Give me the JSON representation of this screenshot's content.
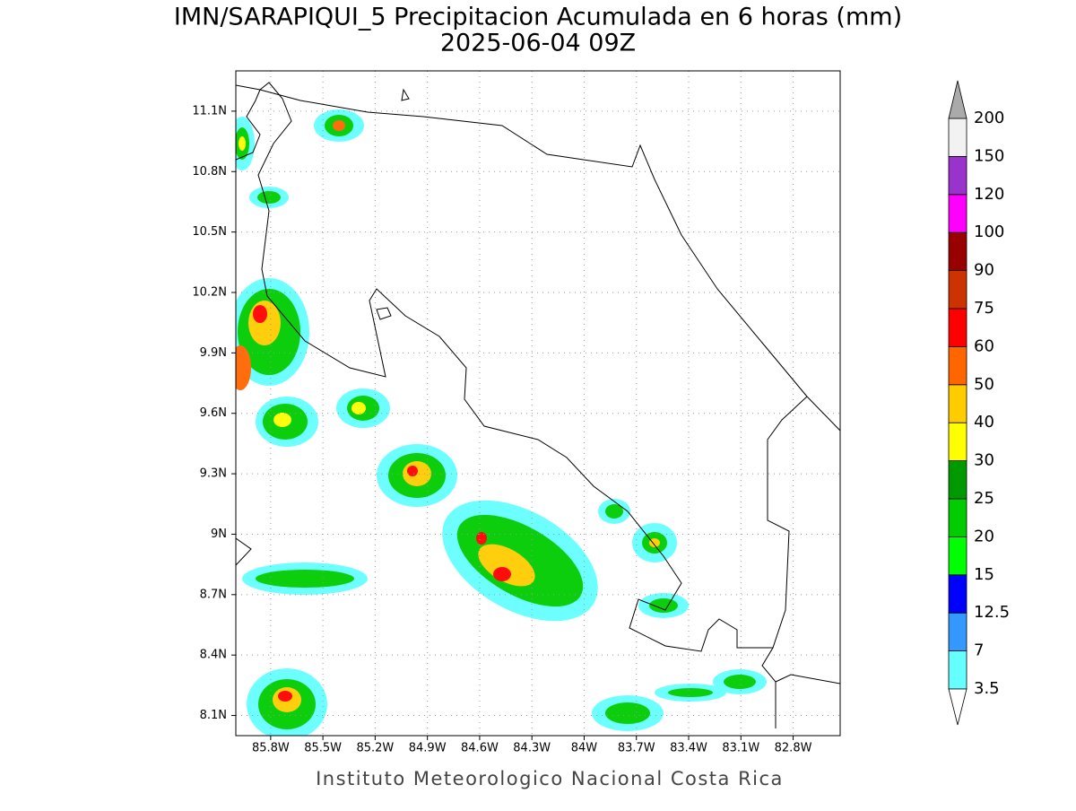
{
  "map": {
    "title": "IMN/SARAPIQUI_5 Precipitacion Acumulada en 6 horas (mm)",
    "subtitle": "2025-06-04 09Z",
    "credit": "Instituto Meteorologico Nacional Costa Rica",
    "lon_range": [
      -86.0,
      -82.53
    ],
    "lat_range": [
      8.0,
      11.3
    ],
    "lon_ticks": [
      {
        "value": -85.8,
        "label": "85.8W"
      },
      {
        "value": -85.5,
        "label": "85.5W"
      },
      {
        "value": -85.2,
        "label": "85.2W"
      },
      {
        "value": -84.9,
        "label": "84.9W"
      },
      {
        "value": -84.6,
        "label": "84.6W"
      },
      {
        "value": -84.3,
        "label": "84.3W"
      },
      {
        "value": -84.0,
        "label": "84W"
      },
      {
        "value": -83.7,
        "label": "83.7W"
      },
      {
        "value": -83.4,
        "label": "83.4W"
      },
      {
        "value": -83.1,
        "label": "83.1W"
      },
      {
        "value": -82.8,
        "label": "82.8W"
      }
    ],
    "lat_ticks": [
      {
        "value": 8.1,
        "label": "8.1N"
      },
      {
        "value": 8.4,
        "label": "8.4N"
      },
      {
        "value": 8.7,
        "label": "8.7N"
      },
      {
        "value": 9.0,
        "label": "9N"
      },
      {
        "value": 9.3,
        "label": "9.3N"
      },
      {
        "value": 9.6,
        "label": "9.6N"
      },
      {
        "value": 9.9,
        "label": "9.9N"
      },
      {
        "value": 10.2,
        "label": "10.2N"
      },
      {
        "value": 10.5,
        "label": "10.5N"
      },
      {
        "value": 10.8,
        "label": "10.8N"
      },
      {
        "value": 11.1,
        "label": "11.1N"
      }
    ],
    "grid": true,
    "colorbar": {
      "levels": [
        3.5,
        7,
        12.5,
        15,
        20,
        25,
        30,
        40,
        50,
        60,
        75,
        90,
        100,
        120,
        150,
        200
      ],
      "colors": [
        "#66ffff",
        "#3399ff",
        "#0000ff",
        "#00ff00",
        "#00cc00",
        "#009900",
        "#ffff00",
        "#ffcc00",
        "#ff6600",
        "#ff0000",
        "#cc3300",
        "#990000",
        "#ff00ff",
        "#9933cc",
        "#f2f2f2"
      ],
      "under_color": "#ffffff",
      "over_color": "#aaaaaa"
    }
  }
}
